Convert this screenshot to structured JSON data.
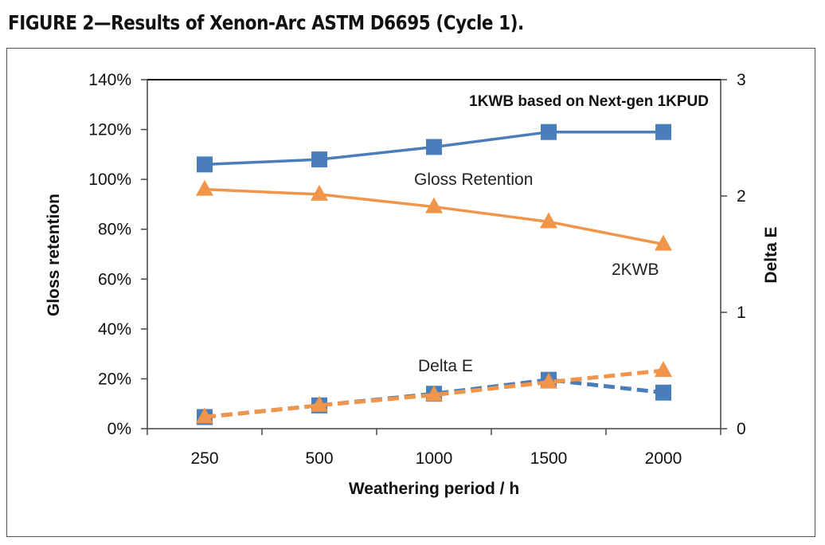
{
  "figure_title": "FIGURE 2—Results of Xenon-Arc ASTM D6695 (Cycle 1).",
  "colors": {
    "blue": "#4a7ebb",
    "orange": "#f0954a",
    "axis": "#444444"
  },
  "chart_data": {
    "type": "line",
    "title": "1KWB based on Next-gen 1KPUD",
    "xlabel": "Weathering period / h",
    "ylabel": "Gloss retention",
    "y2label": "Delta E",
    "categories": [
      "250",
      "500",
      "1000",
      "1500",
      "2000"
    ],
    "ylim": [
      0,
      140
    ],
    "y_ticks": [
      "0%",
      "20%",
      "40%",
      "60%",
      "80%",
      "100%",
      "120%",
      "140%"
    ],
    "y2lim": [
      0,
      3
    ],
    "y2_ticks": [
      "0",
      "1",
      "2",
      "3"
    ],
    "annotations": {
      "gloss": "Gloss Retention",
      "twokwb": "2KWB",
      "deltae": "Delta E"
    },
    "series": [
      {
        "axis": "left",
        "color": "#4a7ebb",
        "marker": "square",
        "dash": false,
        "values": [
          106,
          108,
          113,
          119,
          119
        ]
      },
      {
        "axis": "left",
        "color": "#f0954a",
        "marker": "triangle",
        "dash": false,
        "values": [
          96,
          94,
          89,
          83,
          74
        ]
      },
      {
        "axis": "right",
        "color": "#4a7ebb",
        "marker": "square",
        "dash": true,
        "values": [
          0.1,
          0.2,
          0.3,
          0.42,
          0.31
        ]
      },
      {
        "axis": "right",
        "color": "#f0954a",
        "marker": "triangle",
        "dash": true,
        "values": [
          0.1,
          0.2,
          0.29,
          0.4,
          0.5
        ]
      }
    ]
  }
}
